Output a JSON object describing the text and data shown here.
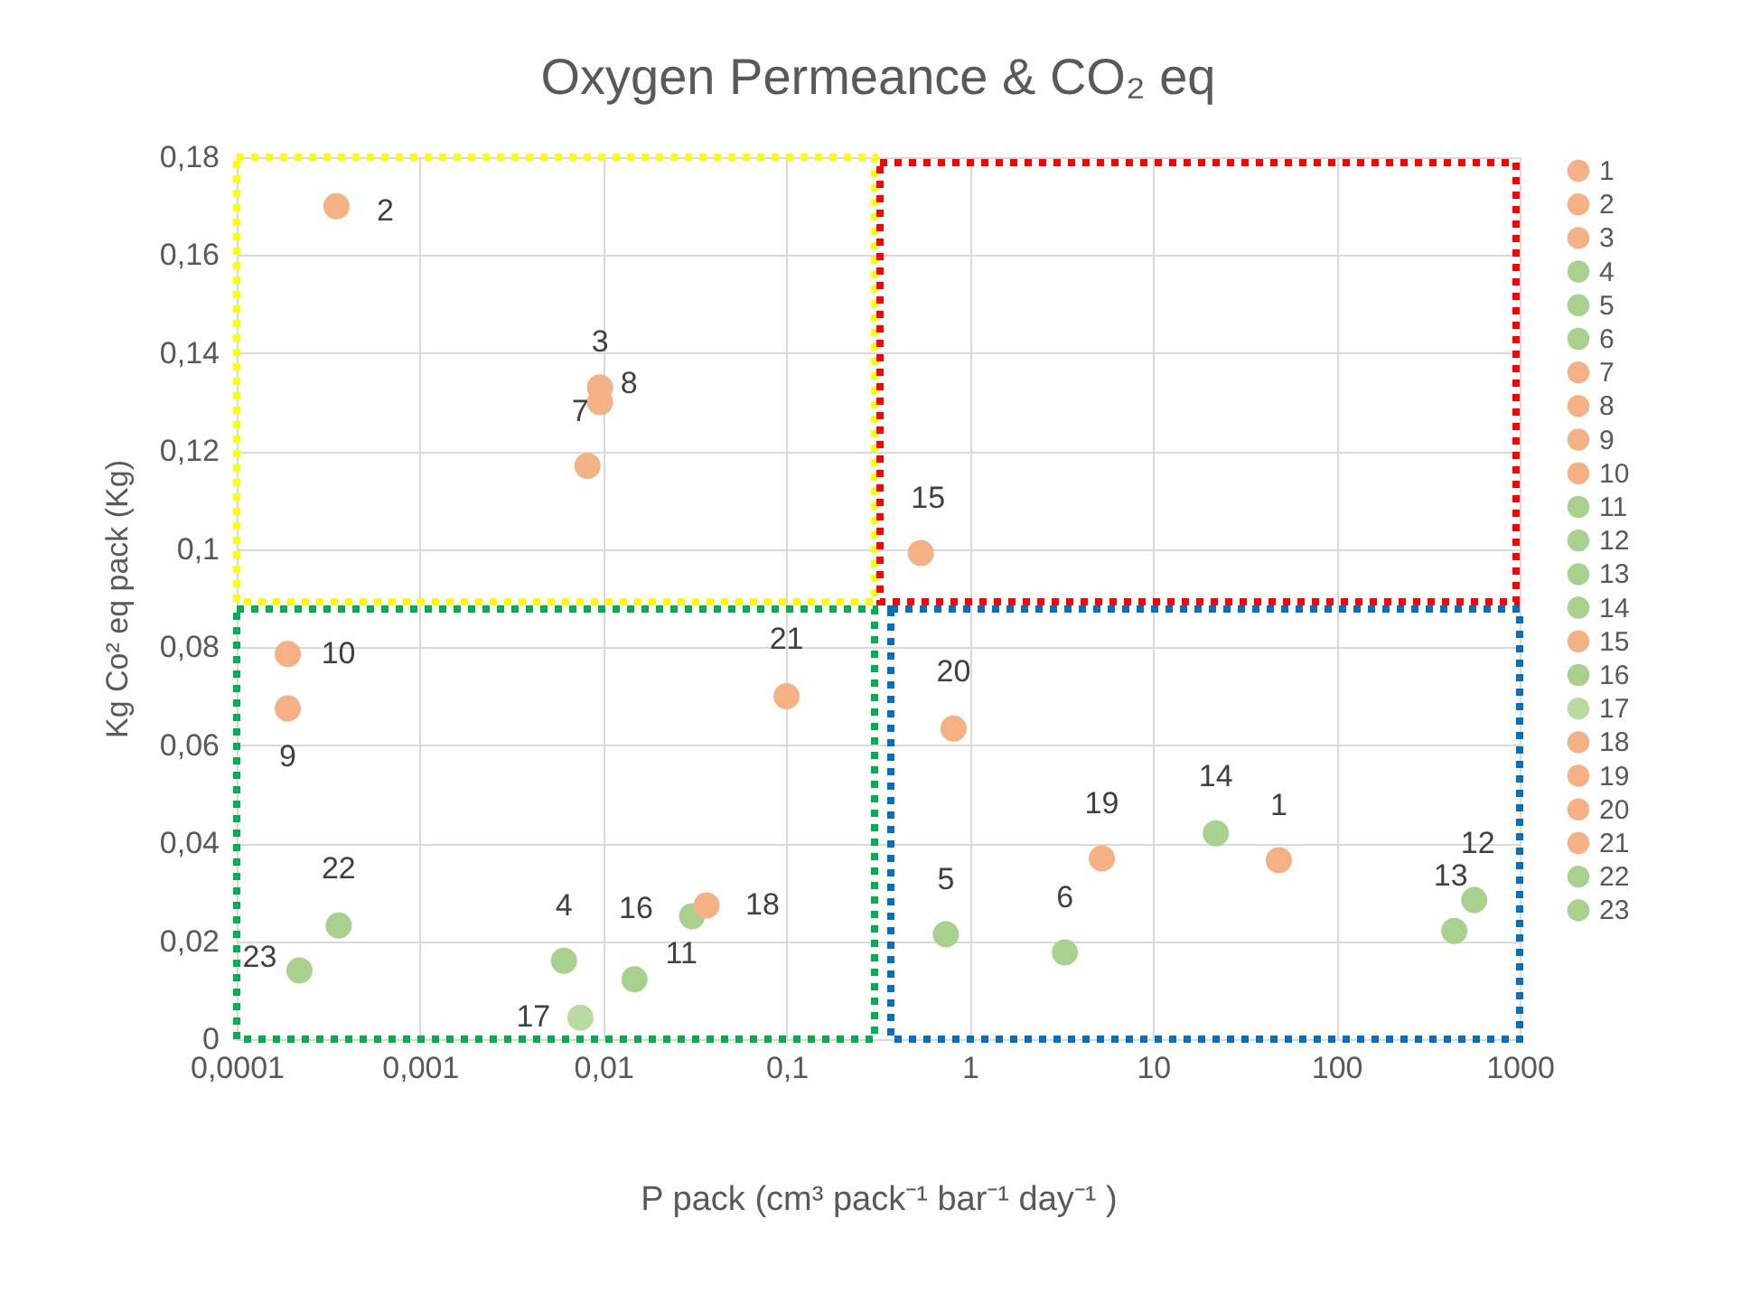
{
  "chart_data": {
    "type": "scatter",
    "title": "Oxygen Permeance & CO₂ eq",
    "xlabel": "P pack (cm³ pack⁻¹ bar⁻¹ day⁻¹ )",
    "ylabel": "Kg Co² eq pack (Kg)",
    "log": "x",
    "grid": true,
    "legend": "right",
    "marker": "circle",
    "xlim": [
      0.0001,
      1000
    ],
    "ylim": [
      0,
      0.18
    ],
    "xticks": [
      {
        "value": 0.0001,
        "label": "0,0001"
      },
      {
        "value": 0.001,
        "label": "0,001"
      },
      {
        "value": 0.01,
        "label": "0,01"
      },
      {
        "value": 0.1,
        "label": "0,1"
      },
      1,
      10,
      100,
      1000
    ],
    "yticks": [
      0,
      {
        "value": 0.02,
        "label": "0,02"
      },
      {
        "value": 0.04,
        "label": "0,04"
      },
      {
        "value": 0.06,
        "label": "0,06"
      },
      {
        "value": 0.08,
        "label": "0,08"
      },
      {
        "value": 0.1,
        "label": "0,1"
      },
      {
        "value": 0.12,
        "label": "0,12"
      },
      {
        "value": 0.14,
        "label": "0,14"
      },
      {
        "value": 0.16,
        "label": "0,16"
      },
      {
        "value": 0.18,
        "label": "0,18"
      }
    ],
    "series": [
      {
        "name": "1",
        "color": "#f4b183",
        "x": [
          48.5
        ],
        "values": [
          0.0365
        ]
      },
      {
        "name": "2",
        "color": "#f4b183",
        "x": [
          0.00035
        ],
        "values": [
          0.17
        ]
      },
      {
        "name": "3",
        "color": "#f4b183",
        "x": [
          0.0096
        ],
        "values": [
          0.133
        ]
      },
      {
        "name": "4",
        "color": "#a9d18e",
        "x": [
          0.0061
        ],
        "values": [
          0.016
        ]
      },
      {
        "name": "5",
        "color": "#a9d18e",
        "x": [
          0.74
        ],
        "values": [
          0.0214
        ]
      },
      {
        "name": "6",
        "color": "#a9d18e",
        "x": [
          3.3
        ],
        "values": [
          0.0177
        ]
      },
      {
        "name": "7",
        "color": "#f4b183",
        "x": [
          0.0082
        ],
        "values": [
          0.117
        ]
      },
      {
        "name": "8",
        "color": "#f4b183",
        "x": [
          0.0096
        ],
        "values": [
          0.13
        ]
      },
      {
        "name": "9",
        "color": "#f4b183",
        "x": [
          0.00019
        ],
        "values": [
          0.0675
        ]
      },
      {
        "name": "10",
        "color": "#f4b183",
        "x": [
          0.00019
        ],
        "values": [
          0.0786
        ]
      },
      {
        "name": "11",
        "color": "#a9d18e",
        "x": [
          0.0148
        ],
        "values": [
          0.0122
        ]
      },
      {
        "name": "12",
        "color": "#a9d18e",
        "x": [
          565
        ],
        "values": [
          0.0284
        ]
      },
      {
        "name": "13",
        "color": "#a9d18e",
        "x": [
          440
        ],
        "values": [
          0.0221
        ]
      },
      {
        "name": "14",
        "color": "#a9d18e",
        "x": [
          22
        ],
        "values": [
          0.042
        ]
      },
      {
        "name": "15",
        "color": "#f4b183",
        "x": [
          0.54
        ],
        "values": [
          0.0992
        ]
      },
      {
        "name": "16",
        "color": "#a9d18e",
        "x": [
          0.0305
        ],
        "values": [
          0.0251
        ]
      },
      {
        "name": "17",
        "color": "#b9dba2",
        "x": [
          0.0075
        ],
        "values": [
          0.0044
        ]
      },
      {
        "name": "18",
        "color": "#f4b183",
        "x": [
          0.0366
        ],
        "values": [
          0.0273
        ]
      },
      {
        "name": "19",
        "color": "#f4b183",
        "x": [
          5.25
        ],
        "values": [
          0.0369
        ]
      },
      {
        "name": "20",
        "color": "#f4b183",
        "x": [
          0.815
        ],
        "values": [
          0.0634
        ]
      },
      {
        "name": "21",
        "color": "#f4b183",
        "x": [
          0.1
        ],
        "values": [
          0.07
        ]
      },
      {
        "name": "22",
        "color": "#a9d18e",
        "x": [
          0.00036
        ],
        "values": [
          0.0232
        ]
      },
      {
        "name": "23",
        "color": "#a9d18e",
        "x": [
          0.00022
        ],
        "values": [
          0.014
        ]
      }
    ]
  }
}
